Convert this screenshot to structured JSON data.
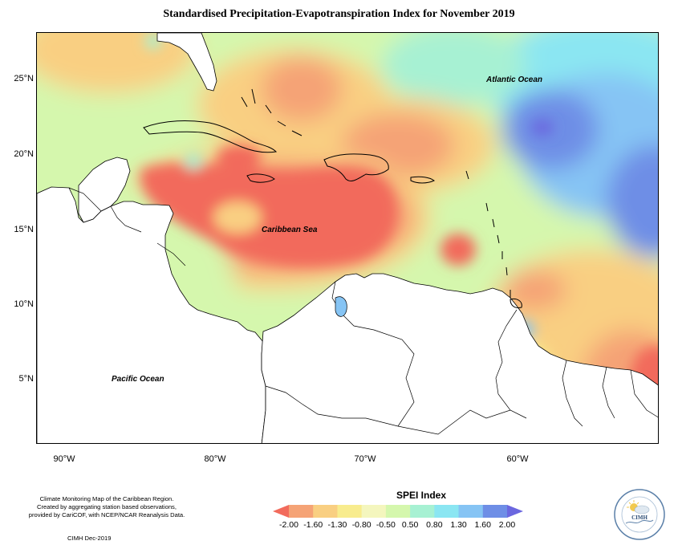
{
  "title": "Standardised Precipitation-Evapotranspiration Index for November 2019",
  "map": {
    "lat_labels": [
      "25°N",
      "20°N",
      "15°N",
      "10°N",
      "5°N"
    ],
    "lon_labels": [
      "90°W",
      "80°W",
      "70°W",
      "60°W"
    ],
    "ocean_labels": {
      "atlantic": "Atlantic Ocean",
      "caribbean": "Caribbean Sea",
      "pacific": "Pacific Ocean"
    }
  },
  "legend": {
    "title": "SPEI Index",
    "ticks": [
      "-2.00",
      "-1.60",
      "-1.30",
      "-0.80",
      "-0.50",
      "0.50",
      "0.80",
      "1.30",
      "1.60",
      "2.00"
    ],
    "colors": [
      "#f26b5c",
      "#f5a376",
      "#f9cf82",
      "#f8ec8e",
      "#f4f6be",
      "#d5f7ad",
      "#a7f1d3",
      "#8be6f2",
      "#86c4f4",
      "#6e8ee6",
      "#6b67df"
    ]
  },
  "footer": {
    "note_lines": [
      "Climate Monitoring Map of the Caribbean Region.",
      "Created by aggregating station based observations,",
      "provided by CariCOF, with NCEP/NCAR Reanalysis Data."
    ],
    "credit": "CIMH Dec-2019"
  },
  "logo": {
    "text": "CIMH"
  }
}
